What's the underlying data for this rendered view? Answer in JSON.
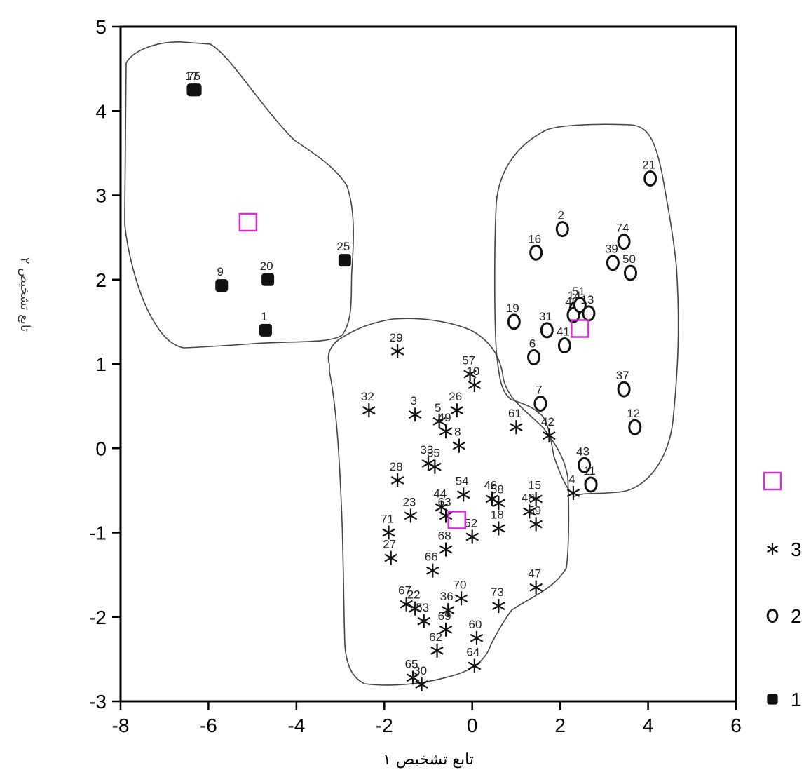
{
  "chart_data": {
    "type": "scatter",
    "xlabel": "تابع تشخیص ۱",
    "ylabel": "تابع تشخیص ۲",
    "xlim": [
      -8,
      6
    ],
    "ylim": [
      -3,
      5
    ],
    "xticks": [
      -8,
      -6,
      -4,
      -2,
      0,
      2,
      4,
      6
    ],
    "yticks": [
      -3,
      -2,
      -1,
      0,
      1,
      2,
      3,
      4,
      5
    ],
    "grid": false,
    "legend_position": "right",
    "group_centroid_color": "#cc33cc",
    "series": [
      {
        "name": "1",
        "marker": "filled-square",
        "points": [
          {
            "label": "17",
            "x": -6.35,
            "y": 4.25
          },
          {
            "label": "75",
            "x": -6.3,
            "y": 4.25
          },
          {
            "label": "9",
            "x": -5.7,
            "y": 1.93
          },
          {
            "label": "20",
            "x": -4.65,
            "y": 2.0
          },
          {
            "label": "1",
            "x": -4.7,
            "y": 1.4
          },
          {
            "label": "25",
            "x": -2.9,
            "y": 2.23
          }
        ]
      },
      {
        "name": "2",
        "marker": "open-circle",
        "points": [
          {
            "label": "21",
            "x": 4.05,
            "y": 3.2
          },
          {
            "label": "2",
            "x": 2.05,
            "y": 2.6
          },
          {
            "label": "16",
            "x": 1.45,
            "y": 2.32
          },
          {
            "label": "74",
            "x": 3.45,
            "y": 2.45
          },
          {
            "label": "39",
            "x": 3.2,
            "y": 2.2
          },
          {
            "label": "50",
            "x": 3.6,
            "y": 2.08
          },
          {
            "label": "14",
            "x": 2.35,
            "y": 1.65
          },
          {
            "label": "40",
            "x": 2.3,
            "y": 1.58
          },
          {
            "label": "51",
            "x": 2.45,
            "y": 1.7
          },
          {
            "label": "13",
            "x": 2.65,
            "y": 1.6
          },
          {
            "label": "19",
            "x": 0.95,
            "y": 1.5
          },
          {
            "label": "31",
            "x": 1.7,
            "y": 1.4
          },
          {
            "label": "41",
            "x": 2.1,
            "y": 1.22
          },
          {
            "label": "6",
            "x": 1.4,
            "y": 1.08
          },
          {
            "label": "37",
            "x": 3.45,
            "y": 0.7
          },
          {
            "label": "7",
            "x": 1.55,
            "y": 0.53
          },
          {
            "label": "12",
            "x": 3.7,
            "y": 0.25
          },
          {
            "label": "43",
            "x": 2.55,
            "y": -0.2
          },
          {
            "label": "11",
            "x": 2.7,
            "y": -0.43
          }
        ]
      },
      {
        "name": "3",
        "marker": "star",
        "points": [
          {
            "label": "29",
            "x": -1.7,
            "y": 1.15
          },
          {
            "label": "57",
            "x": -0.05,
            "y": 0.88
          },
          {
            "label": "10",
            "x": 0.05,
            "y": 0.75
          },
          {
            "label": "32",
            "x": -2.35,
            "y": 0.45
          },
          {
            "label": "3",
            "x": -1.3,
            "y": 0.4
          },
          {
            "label": "26",
            "x": -0.35,
            "y": 0.45
          },
          {
            "label": "5",
            "x": -0.75,
            "y": 0.32
          },
          {
            "label": "49",
            "x": -0.6,
            "y": 0.2
          },
          {
            "label": "61",
            "x": 1.0,
            "y": 0.25
          },
          {
            "label": "42",
            "x": 1.75,
            "y": 0.15
          },
          {
            "label": "8",
            "x": -0.3,
            "y": 0.03
          },
          {
            "label": "33",
            "x": -1.0,
            "y": -0.18
          },
          {
            "label": "35",
            "x": -0.85,
            "y": -0.22
          },
          {
            "label": "28",
            "x": -1.7,
            "y": -0.38
          },
          {
            "label": "4",
            "x": 2.3,
            "y": -0.53
          },
          {
            "label": "15",
            "x": 1.45,
            "y": -0.6
          },
          {
            "label": "54",
            "x": -0.2,
            "y": -0.55
          },
          {
            "label": "46",
            "x": 0.45,
            "y": -0.6
          },
          {
            "label": "58",
            "x": 0.6,
            "y": -0.65
          },
          {
            "label": "48",
            "x": 1.3,
            "y": -0.75
          },
          {
            "label": "59",
            "x": 1.45,
            "y": -0.9
          },
          {
            "label": "23",
            "x": -1.4,
            "y": -0.8
          },
          {
            "label": "44",
            "x": -0.7,
            "y": -0.7
          },
          {
            "label": "63",
            "x": -0.6,
            "y": -0.8
          },
          {
            "label": "18",
            "x": 0.6,
            "y": -0.95
          },
          {
            "label": "71",
            "x": -1.9,
            "y": -1.0
          },
          {
            "label": "27",
            "x": -1.85,
            "y": -1.3
          },
          {
            "label": "68",
            "x": -0.6,
            "y": -1.2
          },
          {
            "label": "52",
            "x": 0.0,
            "y": -1.05
          },
          {
            "label": "66",
            "x": -0.9,
            "y": -1.45
          },
          {
            "label": "70",
            "x": -0.25,
            "y": -1.78
          },
          {
            "label": "47",
            "x": 1.45,
            "y": -1.65
          },
          {
            "label": "73",
            "x": 0.6,
            "y": -1.87
          },
          {
            "label": "67",
            "x": -1.5,
            "y": -1.85
          },
          {
            "label": "22",
            "x": -1.3,
            "y": -1.9
          },
          {
            "label": "36",
            "x": -0.55,
            "y": -1.92
          },
          {
            "label": "53",
            "x": -1.1,
            "y": -2.05
          },
          {
            "label": "69",
            "x": -0.6,
            "y": -2.15
          },
          {
            "label": "60",
            "x": 0.1,
            "y": -2.25
          },
          {
            "label": "62",
            "x": -0.8,
            "y": -2.4
          },
          {
            "label": "65",
            "x": -1.35,
            "y": -2.72
          },
          {
            "label": "30",
            "x": -1.15,
            "y": -2.8
          },
          {
            "label": "64",
            "x": 0.05,
            "y": -2.58
          }
        ]
      }
    ],
    "centroids": [
      {
        "group": "1",
        "x": -5.1,
        "y": 2.68
      },
      {
        "group": "2",
        "x": 2.45,
        "y": 1.42
      },
      {
        "group": "3",
        "x": -0.35,
        "y": -0.85
      }
    ],
    "legend": [
      {
        "symbol": "centroid-square",
        "label": ""
      },
      {
        "symbol": "star",
        "label": "3"
      },
      {
        "symbol": "open-circle",
        "label": "2"
      },
      {
        "symbol": "filled-square",
        "label": "1"
      }
    ]
  }
}
